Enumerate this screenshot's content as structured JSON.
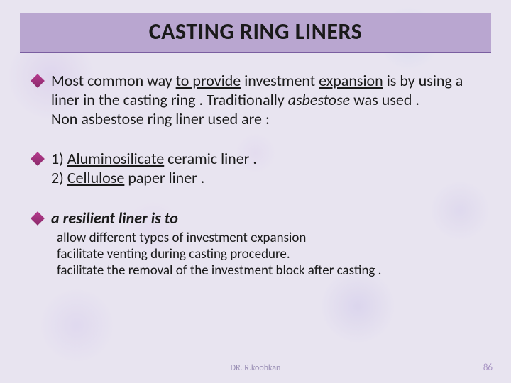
{
  "title": "CASTING RING LINERS",
  "block1": {
    "p1a": "Most common way ",
    "p1b_u": "to provide",
    "p1c": " investment ",
    "p1d_u": "expansion",
    "p1e": " is by using a liner in the casting ring . Traditionally ",
    "p1f_i": "asbestose",
    "p1g": " was used .",
    "p2": "Non asbestose ring liner used are :"
  },
  "block2": {
    "l1a": "1) ",
    "l1b_u": "Aluminosilicate",
    "l1c": " ceramic liner .",
    "l2a": "2) ",
    "l2b_u": "Cellulose",
    "l2c": " paper liner ."
  },
  "block3": {
    "head": "a resilient liner is to",
    "r1a": " allow different types of investment ",
    "r1b_iu": "expansion",
    "r2a_i": " facilitate ",
    "r2b_iu": "venting",
    "r2c": " during casting procedure.",
    "r3a_iu": "facilitate the removal",
    "r3b": " of the investment block after casting ."
  },
  "footer": {
    "center": "DR. R.koohkan",
    "page": "86"
  },
  "colors": {
    "band_bg": "#b9a6d0",
    "band_border": "#7a5ea0",
    "diamond": "#b63a8e",
    "footer_text": "#9a8fb5",
    "page_num": "#a894c4"
  }
}
